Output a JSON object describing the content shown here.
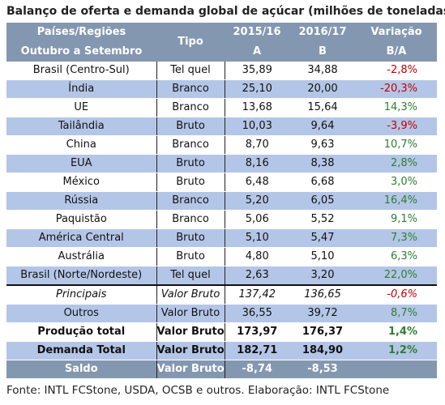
{
  "title": "Balanço de oferta e demanda global de açúcar (milhões de toneladas)",
  "header": {
    "col1_line1": "Países/Regiões",
    "col1_line2": "Outubro a Setembro",
    "col2": "Tipo",
    "col3_line1": "2015/16",
    "col3_line2": "A",
    "col4_line1": "2016/17",
    "col4_line2": "B",
    "col5_line1": "Variação",
    "col5_line2": "B/A"
  },
  "rows": [
    {
      "country": "Brasil (Centro-Sul)",
      "tipo": "Tel quel",
      "a": "35,89",
      "b": "34,88",
      "var": "-2,8%"
    },
    {
      "country": "Índia",
      "tipo": "Branco",
      "a": "25,10",
      "b": "20,00",
      "var": "-20,3%"
    },
    {
      "country": "UE",
      "tipo": "Branco",
      "a": "13,68",
      "b": "15,64",
      "var": "14,3%"
    },
    {
      "country": "Tailândia",
      "tipo": "Bruto",
      "a": "10,03",
      "b": "9,64",
      "var": "-3,9%"
    },
    {
      "country": "China",
      "tipo": "Branco",
      "a": "8,70",
      "b": "9,63",
      "var": "10,7%"
    },
    {
      "country": "EUA",
      "tipo": "Bruto",
      "a": "8,16",
      "b": "8,38",
      "var": "2,8%"
    },
    {
      "country": "México",
      "tipo": "Bruto",
      "a": "6,48",
      "b": "6,68",
      "var": "3,0%"
    },
    {
      "country": "Rússia",
      "tipo": "Branco",
      "a": "5,20",
      "b": "6,05",
      "var": "16,4%"
    },
    {
      "country": "Paquistão",
      "tipo": "Branco",
      "a": "5,06",
      "b": "5,52",
      "var": "9,1%"
    },
    {
      "country": "América Central",
      "tipo": "Bruto",
      "a": "5,10",
      "b": "5,47",
      "var": "7,3%"
    },
    {
      "country": "Austrália",
      "tipo": "Bruto",
      "a": "4,80",
      "b": "5,10",
      "var": "6,3%"
    },
    {
      "country": "Brasil (Norte/Nordeste)",
      "tipo": "Tel quel",
      "a": "2,63",
      "b": "3,20",
      "var": "22,0%"
    }
  ],
  "principais": {
    "country": "Principais",
    "tipo": "Valor Bruto",
    "a": "137,42",
    "b": "136,65",
    "var": "-0,6%"
  },
  "outros": {
    "country": "Outros",
    "tipo": "Valor Bruto",
    "a": "36,55",
    "b": "39,72",
    "var": "8,7%"
  },
  "producao": {
    "country": "Produção total",
    "tipo": "Valor Bruto",
    "a": "173,97",
    "b": "176,37",
    "var": "1,4%"
  },
  "demanda": {
    "country": "Demanda Total",
    "tipo": "Valor Bruto",
    "a": "182,71",
    "b": "184,90",
    "var": "1,2%"
  },
  "saldo": {
    "country": "Saldo",
    "tipo": "Valor Bruto",
    "a": "-8,74",
    "b": "-8,53",
    "var": ""
  },
  "source": "Fonte: INTL FCStone, USDA, OCSB e outros. Elaboração: INTL FCStone",
  "colors": {
    "header_bg": "#8497b0",
    "band_bg": "#b4c6e7",
    "negative": "#c00000",
    "positive": "#2e7d32"
  }
}
